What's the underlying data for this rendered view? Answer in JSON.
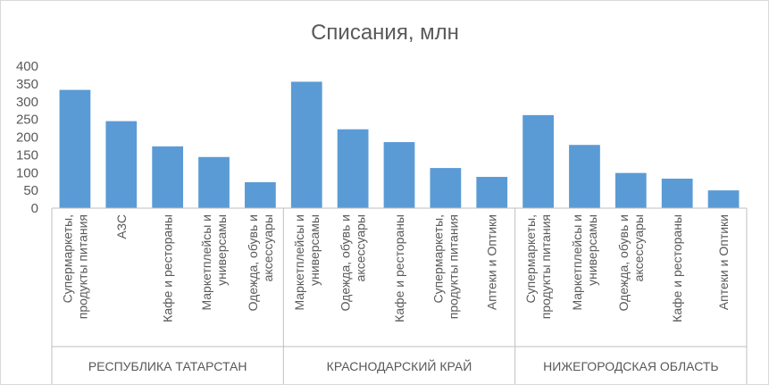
{
  "chart_data": {
    "type": "bar",
    "title": "Списания, млн",
    "ylim": [
      0,
      400
    ],
    "yticks": [
      0,
      50,
      100,
      150,
      200,
      250,
      300,
      350,
      400
    ],
    "grid": false,
    "legend": "none",
    "bar_color": "#5b9bd5",
    "groups": [
      {
        "name": "РЕСПУБЛИКА ТАТАРСТАН",
        "categories": [
          [
            "Супермаркеты,",
            "продукты питания"
          ],
          [
            "АЗС"
          ],
          [
            "Кафе и рестораны"
          ],
          [
            "Маркетплейсы и",
            "универсамы"
          ],
          [
            "Одежда, обувь и",
            "аксессуары"
          ]
        ],
        "values": [
          333,
          245,
          174,
          144,
          73
        ]
      },
      {
        "name": "КРАСНОДАРСКИЙ КРАЙ",
        "categories": [
          [
            "Маркетплейсы и",
            "универсамы"
          ],
          [
            "Одежда, обувь и",
            "аксессуары"
          ],
          [
            "Кафе и рестораны"
          ],
          [
            "Супермаркеты,",
            "продукты питания"
          ],
          [
            "Аптеки и Оптики"
          ]
        ],
        "values": [
          356,
          222,
          186,
          113,
          88
        ]
      },
      {
        "name": "НИЖЕГОРОДСКАЯ ОБЛАСТЬ",
        "categories": [
          [
            "Супермаркеты,",
            "продукты питания"
          ],
          [
            "Маркетплейсы и",
            "универсамы"
          ],
          [
            "Одежда, обувь и",
            "аксессуары"
          ],
          [
            "Кафе и рестораны"
          ],
          [
            "Аптеки и Оптики"
          ]
        ],
        "values": [
          262,
          178,
          99,
          83,
          50
        ]
      }
    ]
  }
}
